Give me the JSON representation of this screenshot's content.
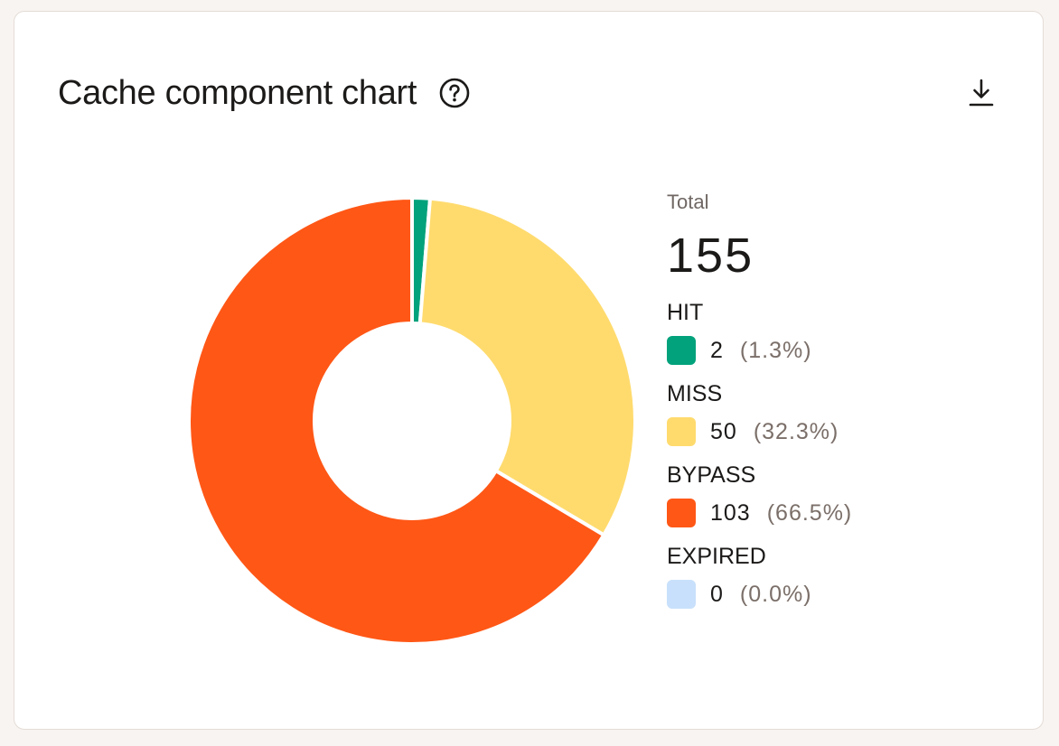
{
  "card": {
    "title": "Cache component chart",
    "help_icon": "help-circle-icon",
    "download_icon": "download-icon"
  },
  "chart_data": {
    "type": "pie",
    "title": "Cache component chart",
    "total_label": "Total",
    "total": "155",
    "donut": true,
    "legend_position": "right",
    "categories": [
      "HIT",
      "MISS",
      "BYPASS",
      "EXPIRED"
    ],
    "values": [
      2,
      50,
      103,
      0
    ],
    "series": [
      {
        "name": "HIT",
        "value": 2,
        "count": "2",
        "pct": "(1.3%)",
        "color": "#02a27c"
      },
      {
        "name": "MISS",
        "value": 50,
        "count": "50",
        "pct": "(32.3%)",
        "color": "#ffdb6e"
      },
      {
        "name": "BYPASS",
        "value": 103,
        "count": "103",
        "pct": "(66.5%)",
        "color": "#ff5716"
      },
      {
        "name": "EXPIRED",
        "value": 0,
        "count": "0",
        "pct": "(0.0%)",
        "color": "#c8e0fb"
      }
    ]
  }
}
